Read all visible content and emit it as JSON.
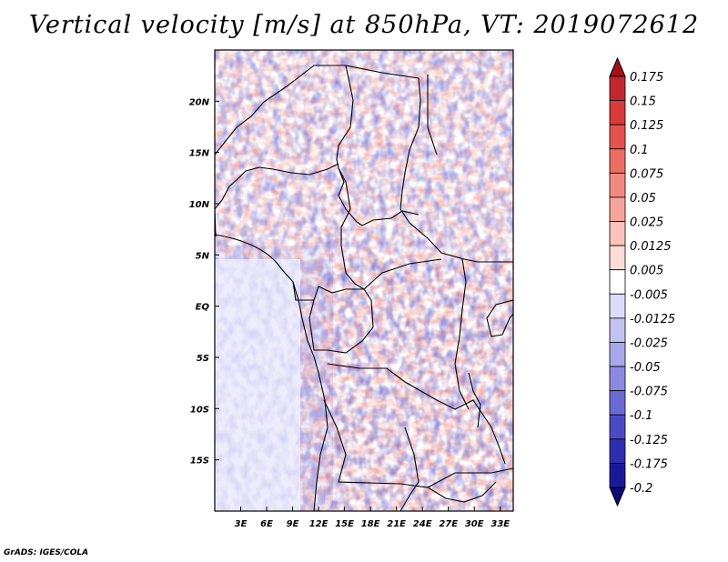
{
  "chart_data": {
    "type": "heatmap",
    "title": "Vertical velocity [m/s] at 850hPa, VT: 2019072612",
    "xlabel": "",
    "ylabel": "",
    "x_ticks": [
      "3E",
      "6E",
      "9E",
      "12E",
      "15E",
      "18E",
      "21E",
      "24E",
      "27E",
      "30E",
      "33E"
    ],
    "x_tick_values": [
      3,
      6,
      9,
      12,
      15,
      18,
      21,
      24,
      27,
      30,
      33
    ],
    "y_ticks": [
      "20N",
      "15N",
      "10N",
      "5N",
      "EQ",
      "5S",
      "10S",
      "15S"
    ],
    "y_tick_values": [
      20,
      15,
      10,
      5,
      0,
      -5,
      -10,
      -15
    ],
    "xlim": [
      0,
      34.5
    ],
    "ylim": [
      -20,
      25
    ],
    "colorbar_levels": [
      "0.175",
      "0.15",
      "0.125",
      "0.1",
      "0.075",
      "0.05",
      "0.025",
      "0.0125",
      "0.005",
      "-0.005",
      "-0.0125",
      "-0.025",
      "-0.05",
      "-0.075",
      "-0.1",
      "-0.125",
      "-0.175",
      "-0.2"
    ],
    "colorbar_colors": [
      "#a50f15",
      "#c1272d",
      "#d73a3a",
      "#e4524c",
      "#ec6e62",
      "#f2897e",
      "#f6a59b",
      "#f9c2ba",
      "#fcddd8",
      "#ffffff",
      "#dcdcf8",
      "#c3c3f2",
      "#a8a8ea",
      "#8a8ae0",
      "#6a6ad4",
      "#4b4bc4",
      "#2e2eb0",
      "#1a1a98",
      "#0e0a78"
    ]
  },
  "footer": {
    "credit": "GrADS: IGES/COLA"
  }
}
